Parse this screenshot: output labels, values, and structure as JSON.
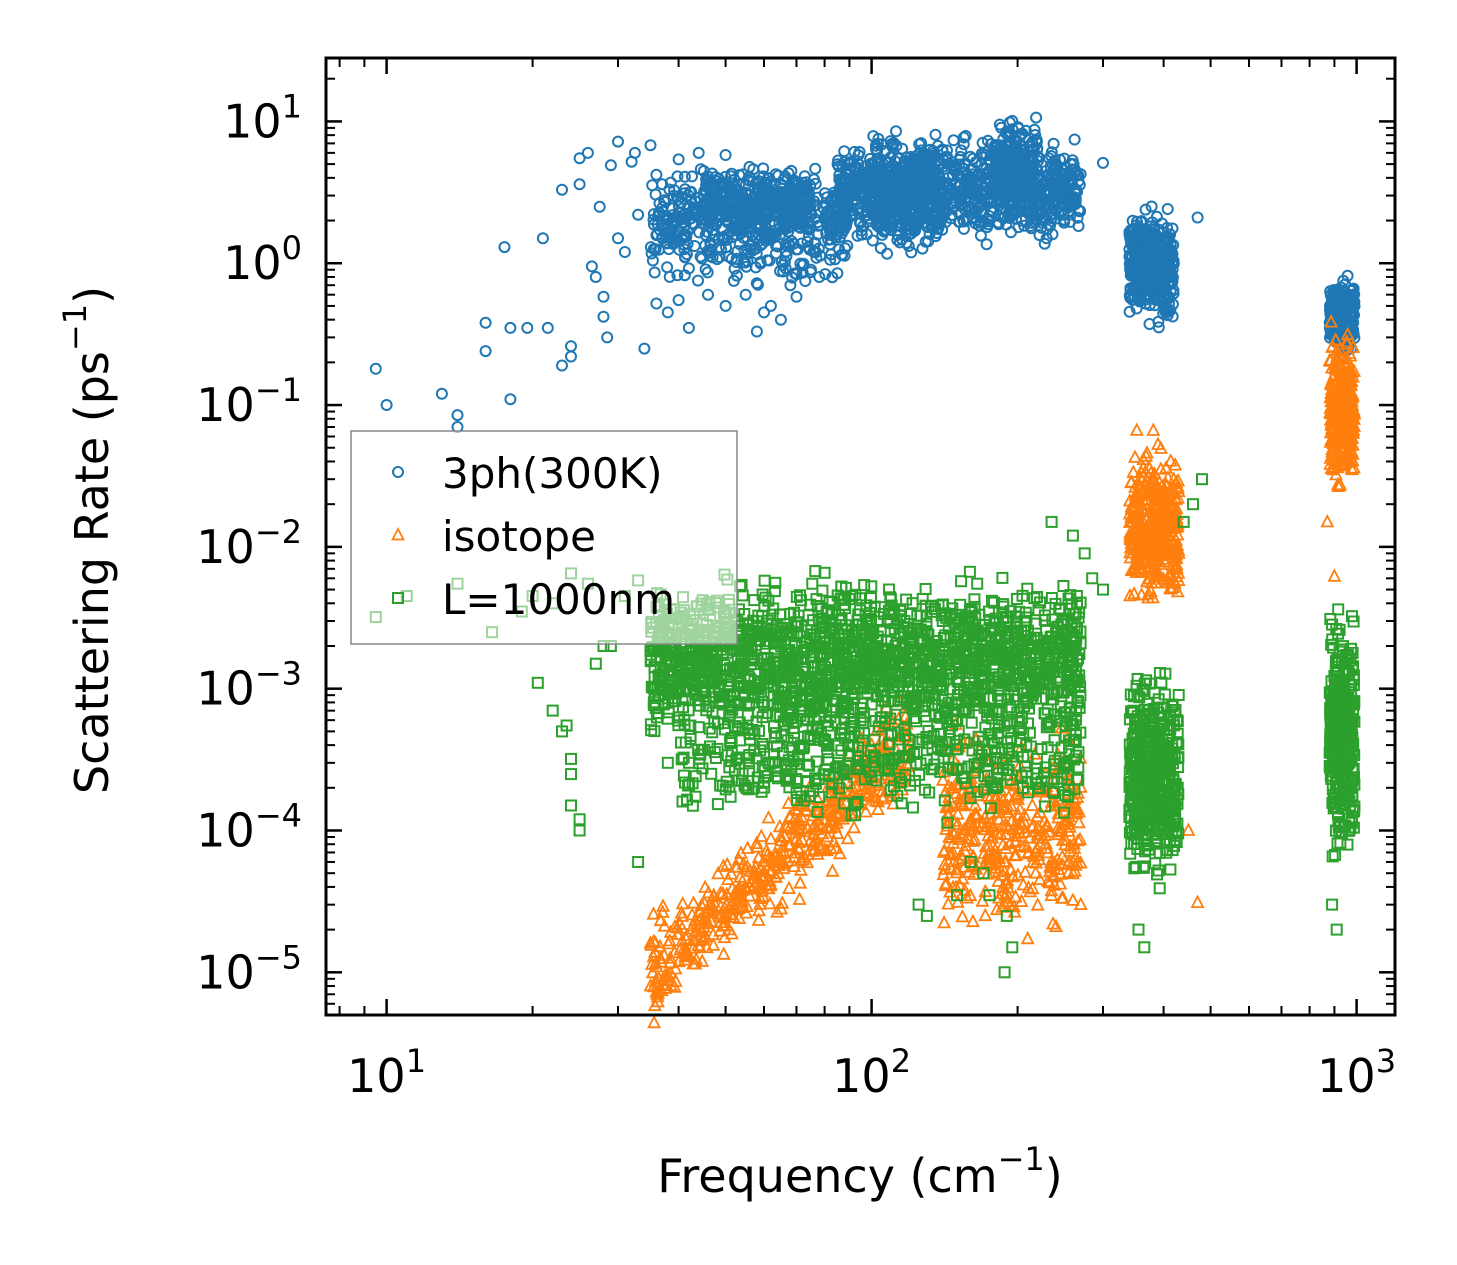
{
  "chart_data": {
    "type": "scatter",
    "xscale": "log",
    "yscale": "log",
    "xlim": [
      7.5,
      1200
    ],
    "ylim": [
      5e-06,
      28
    ],
    "xlabel": {
      "main": "Frequency (cm",
      "sup": "−1",
      "end": ")"
    },
    "ylabel": {
      "main": "Scattering Rate (ps",
      "sup": "−1",
      "end": ")"
    },
    "xticks": [
      {
        "base": "10",
        "exp": "1",
        "value": 10
      },
      {
        "base": "10",
        "exp": "2",
        "value": 100
      },
      {
        "base": "10",
        "exp": "3",
        "value": 1000
      }
    ],
    "yticks": [
      {
        "base": "10",
        "exp": "1",
        "value": 10
      },
      {
        "base": "10",
        "exp": "0",
        "value": 1
      },
      {
        "base": "10",
        "exp": "−1",
        "value": 0.1
      },
      {
        "base": "10",
        "exp": "−2",
        "value": 0.01
      },
      {
        "base": "10",
        "exp": "−3",
        "value": 0.001
      },
      {
        "base": "10",
        "exp": "−4",
        "value": 0.0001
      },
      {
        "base": "10",
        "exp": "−5",
        "value": 1e-05
      }
    ],
    "legend_position": "center-left",
    "series": [
      {
        "name": "3ph(300K)",
        "marker": "circle",
        "color": "#1f77b4",
        "points": [
          [
            9.5,
            0.18
          ],
          [
            10,
            0.1
          ],
          [
            13,
            0.12
          ],
          [
            14,
            0.085
          ],
          [
            14,
            0.07
          ],
          [
            16,
            0.24
          ],
          [
            16,
            0.38
          ],
          [
            17.5,
            1.3
          ],
          [
            18,
            0.35
          ],
          [
            18,
            0.11
          ],
          [
            19.5,
            0.35
          ],
          [
            21,
            1.5
          ],
          [
            21.5,
            0.35
          ],
          [
            23,
            0.19
          ],
          [
            23,
            3.3
          ],
          [
            24,
            0.26
          ],
          [
            24,
            0.22
          ],
          [
            25,
            3.6
          ],
          [
            25,
            5.5
          ],
          [
            26,
            6
          ],
          [
            26.5,
            0.95
          ],
          [
            27,
            0.8
          ],
          [
            27.5,
            2.5
          ],
          [
            28,
            0.58
          ],
          [
            28,
            0.42
          ],
          [
            28.5,
            0.3
          ],
          [
            29,
            4.9
          ],
          [
            30,
            7.2
          ],
          [
            30,
            1.5
          ],
          [
            31,
            1.2
          ],
          [
            32,
            5.2
          ],
          [
            32.5,
            6
          ],
          [
            33,
            2.2
          ],
          [
            34,
            0.25
          ],
          [
            35,
            6.8
          ],
          [
            36,
            4.2
          ],
          [
            36,
            0.52
          ],
          [
            37,
            3.6
          ],
          [
            38,
            0.45
          ],
          [
            38,
            2
          ],
          [
            40,
            0.55
          ],
          [
            40,
            5.4
          ],
          [
            42,
            0.35
          ],
          [
            42,
            0.92
          ],
          [
            44,
            6
          ],
          [
            46,
            0.6
          ],
          [
            47,
            1.1
          ],
          [
            50,
            0.5
          ],
          [
            50,
            5.8
          ],
          [
            52,
            0.75
          ],
          [
            55,
            0.6
          ],
          [
            58,
            0.33
          ],
          [
            60,
            0.45
          ],
          [
            62,
            0.5
          ],
          [
            65,
            0.4
          ],
          [
            68,
            0.7
          ],
          [
            70,
            0.58
          ],
          [
            75,
            0.9
          ],
          [
            78,
            0.8
          ],
          [
            85,
            0.85
          ],
          [
            300,
            5.1
          ],
          [
            470,
            2.1
          ]
        ],
        "clusters": [
          {
            "x": [
              35,
              90
            ],
            "y": [
              0.6,
              6
            ],
            "n": 500
          },
          {
            "x": [
              45,
              75
            ],
            "y": [
              1.5,
              5
            ],
            "n": 300
          },
          {
            "x": [
              85,
              270
            ],
            "y": [
              1.2,
              9
            ],
            "n": 900
          },
          {
            "x": [
              100,
              140
            ],
            "y": [
              0.9,
              10
            ],
            "n": 300
          },
          {
            "x": [
              180,
              220
            ],
            "y": [
              2,
              13
            ],
            "n": 200
          },
          {
            "x": [
              340,
              420
            ],
            "y": [
              0.3,
              3
            ],
            "n": 400
          },
          {
            "x": [
              880,
              990
            ],
            "y": [
              0.2,
              0.9
            ],
            "n": 250
          }
        ]
      },
      {
        "name": "isotope",
        "marker": "triangle",
        "color": "#ff7f0e",
        "points": [
          [
            90,
            0.00035
          ],
          [
            160,
            0.00012
          ],
          [
            200,
            0.00018
          ],
          [
            240,
            2.1e-05
          ],
          [
            270,
            3e-05
          ],
          [
            470,
            3.1e-05
          ],
          [
            450,
            0.0001
          ],
          [
            400,
            0.01
          ],
          [
            870,
            0.015
          ],
          [
            900,
            0.0062
          ]
        ],
        "clusters": [
          {
            "x": [
              35,
              120
            ],
            "y": [
              1e-05,
              0.0008
            ],
            "n": 500,
            "trend": true
          },
          {
            "x": [
              140,
              270
            ],
            "y": [
              1.2e-05,
              0.0008
            ],
            "n": 400
          },
          {
            "x": [
              340,
              430
            ],
            "y": [
              0.003,
              0.07
            ],
            "n": 400
          },
          {
            "x": [
              880,
              990
            ],
            "y": [
              0.02,
              0.45
            ],
            "n": 300
          }
        ]
      },
      {
        "name": "L=1000nm",
        "marker": "square",
        "color": "#2ca02c",
        "points": [
          [
            9.5,
            0.0032
          ],
          [
            11,
            0.0045
          ],
          [
            14,
            0.0055
          ],
          [
            16.5,
            0.0025
          ],
          [
            19,
            0.0035
          ],
          [
            20,
            0.0045
          ],
          [
            22,
            0.004
          ],
          [
            24,
            0.0065
          ],
          [
            26,
            0.0055
          ],
          [
            27,
            0.0015
          ],
          [
            28,
            0.002
          ],
          [
            29,
            0.002
          ],
          [
            31,
            0.0045
          ],
          [
            33,
            0.0058
          ],
          [
            20.5,
            0.0011
          ],
          [
            22,
            0.0007
          ],
          [
            23,
            0.0005
          ],
          [
            23.5,
            0.00055
          ],
          [
            24,
            0.00032
          ],
          [
            24,
            0.00025
          ],
          [
            24,
            0.00015
          ],
          [
            25,
            0.00012
          ],
          [
            25,
            0.0001
          ],
          [
            33,
            6e-05
          ],
          [
            38,
            0.0003
          ],
          [
            42,
            0.0003
          ],
          [
            170,
            5e-05
          ],
          [
            175,
            3.5e-05
          ],
          [
            190,
            2.5e-05
          ],
          [
            195,
            1.5e-05
          ],
          [
            188,
            1e-05
          ],
          [
            150,
            3.5e-05
          ],
          [
            160,
            6e-05
          ],
          [
            125,
            3e-05
          ],
          [
            130,
            2.5e-05
          ],
          [
            235,
            0.015
          ],
          [
            260,
            0.012
          ],
          [
            275,
            0.009
          ],
          [
            285,
            0.006
          ],
          [
            300,
            0.005
          ],
          [
            355,
            2e-05
          ],
          [
            365,
            1.5e-05
          ],
          [
            440,
            0.015
          ],
          [
            460,
            0.02
          ],
          [
            480,
            0.03
          ],
          [
            890,
            3e-05
          ],
          [
            910,
            2e-05
          ]
        ],
        "clusters": [
          {
            "x": [
              35,
              270
            ],
            "y": [
              0.0003,
              0.008
            ],
            "n": 1800
          },
          {
            "x": [
              40,
              270
            ],
            "y": [
              0.0001,
              0.001
            ],
            "n": 400
          },
          {
            "x": [
              340,
              430
            ],
            "y": [
              3e-05,
              0.002
            ],
            "n": 450
          },
          {
            "x": [
              880,
              990
            ],
            "y": [
              4e-05,
              0.005
            ],
            "n": 350
          }
        ]
      }
    ]
  }
}
